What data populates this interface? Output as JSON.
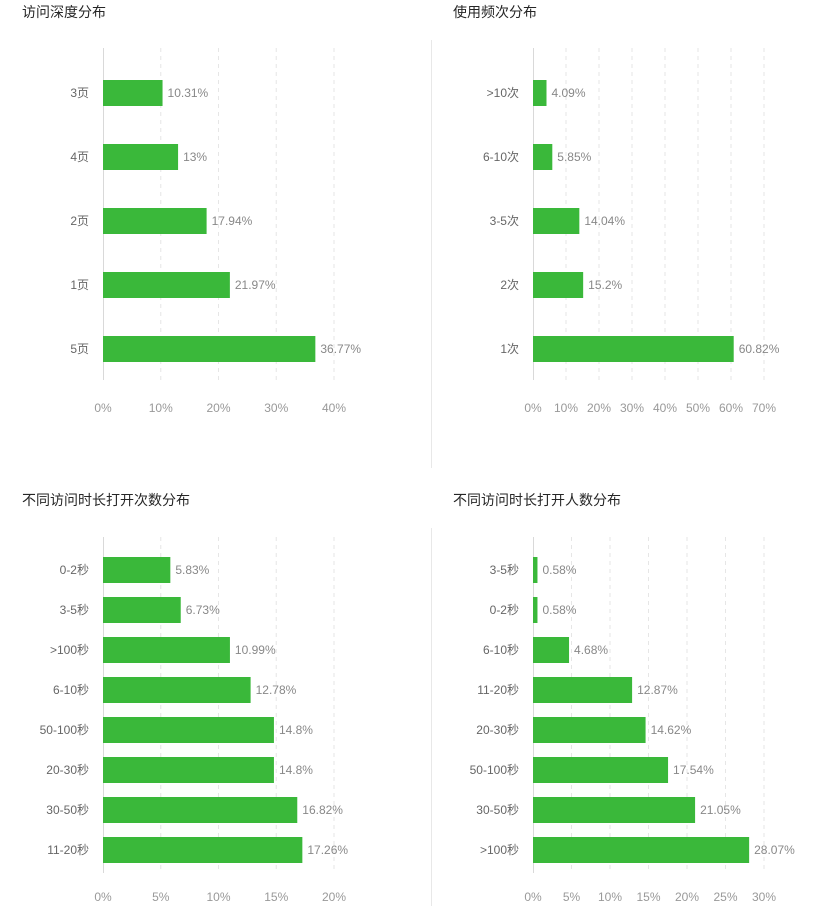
{
  "colors": {
    "bar": "#3ab83a",
    "grid": "#e6e6e6",
    "axis": "#d9d9d9"
  },
  "chart_data": [
    {
      "type": "bar",
      "orientation": "horizontal",
      "title": "访问深度分布",
      "categories": [
        "3页",
        "4页",
        "2页",
        "1页",
        "5页"
      ],
      "values": [
        10.31,
        13,
        17.94,
        21.97,
        36.77
      ],
      "value_labels": [
        "10.31%",
        "13%",
        "17.94%",
        "21.97%",
        "36.77%"
      ],
      "xlim": [
        0,
        40
      ],
      "xticks": [
        0,
        10,
        20,
        30,
        40
      ],
      "xtick_labels": [
        "0%",
        "10%",
        "20%",
        "30%",
        "40%"
      ],
      "grid": true
    },
    {
      "type": "bar",
      "orientation": "horizontal",
      "title": "使用频次分布",
      "categories": [
        ">10次",
        "6-10次",
        "3-5次",
        "2次",
        "1次"
      ],
      "values": [
        4.09,
        5.85,
        14.04,
        15.2,
        60.82
      ],
      "value_labels": [
        "4.09%",
        "5.85%",
        "14.04%",
        "15.2%",
        "60.82%"
      ],
      "xlim": [
        0,
        70
      ],
      "xticks": [
        0,
        10,
        20,
        30,
        40,
        50,
        60,
        70
      ],
      "xtick_labels": [
        "0%",
        "10%",
        "20%",
        "30%",
        "40%",
        "50%",
        "60%",
        "70%"
      ],
      "grid": true
    },
    {
      "type": "bar",
      "orientation": "horizontal",
      "title": "不同访问时长打开次数分布",
      "categories": [
        "0-2秒",
        "3-5秒",
        ">100秒",
        "6-10秒",
        "50-100秒",
        "20-30秒",
        "30-50秒",
        "11-20秒"
      ],
      "values": [
        5.83,
        6.73,
        10.99,
        12.78,
        14.8,
        14.8,
        16.82,
        17.26
      ],
      "value_labels": [
        "5.83%",
        "6.73%",
        "10.99%",
        "12.78%",
        "14.8%",
        "14.8%",
        "16.82%",
        "17.26%"
      ],
      "xlim": [
        0,
        20
      ],
      "xticks": [
        0,
        5,
        10,
        15,
        20
      ],
      "xtick_labels": [
        "0%",
        "5%",
        "10%",
        "15%",
        "20%"
      ],
      "grid": true
    },
    {
      "type": "bar",
      "orientation": "horizontal",
      "title": "不同访问时长打开人数分布",
      "categories": [
        "3-5秒",
        "0-2秒",
        "6-10秒",
        "11-20秒",
        "20-30秒",
        "50-100秒",
        "30-50秒",
        ">100秒"
      ],
      "values": [
        0.58,
        0.58,
        4.68,
        12.87,
        14.62,
        17.54,
        21.05,
        28.07
      ],
      "value_labels": [
        "0.58%",
        "0.58%",
        "4.68%",
        "12.87%",
        "14.62%",
        "17.54%",
        "21.05%",
        "28.07%"
      ],
      "xlim": [
        0,
        30
      ],
      "xticks": [
        0,
        5,
        10,
        15,
        20,
        25,
        30
      ],
      "xtick_labels": [
        "0%",
        "5%",
        "10%",
        "15%",
        "20%",
        "25%",
        "30%"
      ],
      "grid": true
    }
  ]
}
